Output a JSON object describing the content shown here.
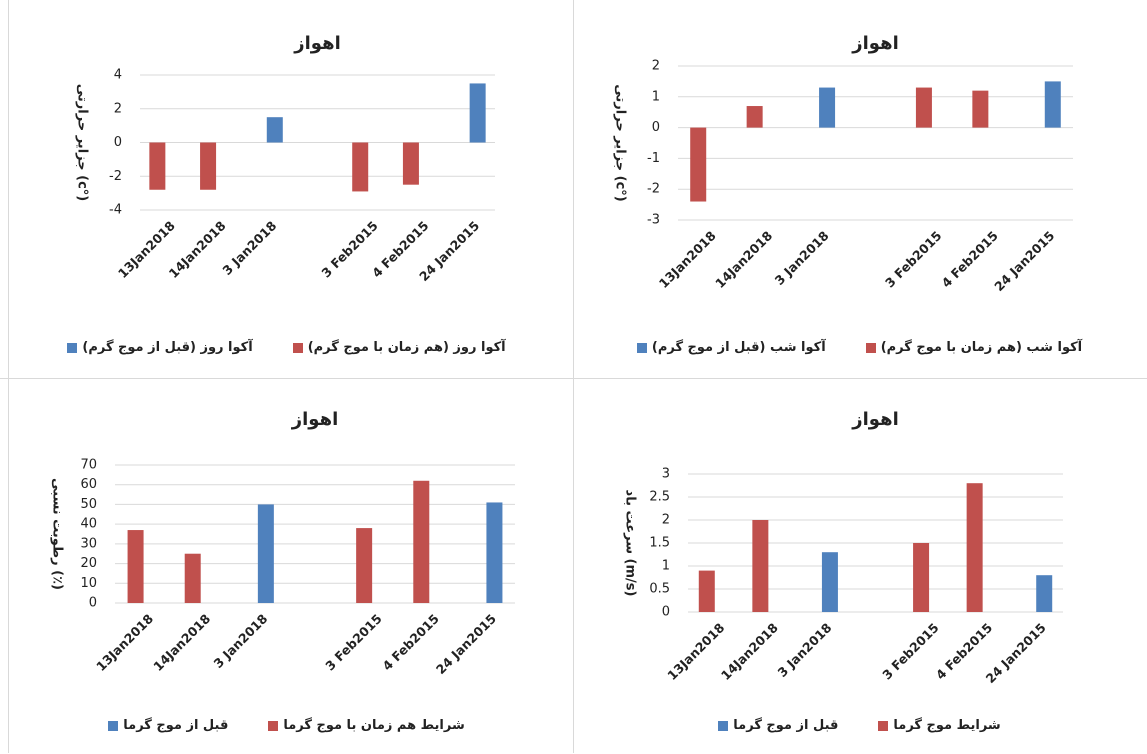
{
  "chart_data": [
    {
      "type": "bar",
      "title": "اهواز",
      "y_label": "جزایر حرارتی (c°)",
      "categories": [
        "13Jan2018",
        "14Jan2018",
        "3 Jan2018",
        null,
        "3 Feb2015",
        "4 Feb2015",
        "24 Jan2015"
      ],
      "series": [
        {
          "name": "آکوا روز (هم زمان با موج گرم)",
          "color": "#c0504d",
          "values": [
            -2.8,
            -2.8,
            null,
            null,
            -2.9,
            -2.5,
            null
          ]
        },
        {
          "name": "آکوا روز (قبل از موج گرم)",
          "color": "#4f81bd",
          "values": [
            null,
            null,
            1.5,
            null,
            null,
            null,
            3.5
          ]
        }
      ],
      "ylim": [
        -4,
        4
      ],
      "yticks": [
        -4,
        -2,
        0,
        2,
        4
      ],
      "grid": true
    },
    {
      "type": "bar",
      "title": "اهواز",
      "y_label": "جزایر حرارتی (c°)",
      "categories": [
        "13Jan2018",
        "14Jan2018",
        "3 Jan2018",
        null,
        "3 Feb2015",
        "4 Feb2015",
        "24 Jan2015"
      ],
      "series": [
        {
          "name": "آکوا شب (هم زمان با موج گرم)",
          "color": "#c0504d",
          "values": [
            -2.4,
            0.7,
            null,
            null,
            1.3,
            1.2,
            null
          ]
        },
        {
          "name": "آکوا شب (قبل از موج گرم)",
          "color": "#4f81bd",
          "values": [
            null,
            null,
            1.3,
            null,
            null,
            null,
            1.5
          ]
        }
      ],
      "ylim": [
        -3,
        2
      ],
      "yticks": [
        -3,
        -2,
        -1,
        0,
        1,
        2
      ],
      "grid": true
    },
    {
      "type": "bar",
      "title": "اهواز",
      "y_label": "رطوبت نسبی (٪)",
      "categories": [
        "13Jan2018",
        "14Jan2018",
        "3 Jan2018",
        null,
        "3 Feb2015",
        "4 Feb2015",
        "24 Jan2015"
      ],
      "series": [
        {
          "name": "شرایط هم زمان با موج گرما",
          "color": "#c0504d",
          "values": [
            37,
            25,
            null,
            null,
            38,
            62,
            null
          ]
        },
        {
          "name": "قبل از موج گرما",
          "color": "#4f81bd",
          "values": [
            null,
            null,
            50,
            null,
            null,
            null,
            51
          ]
        }
      ],
      "ylim": [
        0,
        70
      ],
      "yticks": [
        0,
        10,
        20,
        30,
        40,
        50,
        60,
        70
      ],
      "grid": true
    },
    {
      "type": "bar",
      "title": "اهواز",
      "y_label": "سرعت باد (m/s)",
      "categories": [
        "13Jan2018",
        "14Jan2018",
        "3 Jan2018",
        null,
        "3 Feb2015",
        "4 Feb2015",
        "24 Jan2015"
      ],
      "series": [
        {
          "name": "شرایط موج گرما",
          "color": "#c0504d",
          "values": [
            0.9,
            2,
            null,
            null,
            1.5,
            2.8,
            null
          ]
        },
        {
          "name": "قبل از موج گرما",
          "color": "#4f81bd",
          "values": [
            null,
            null,
            1.3,
            null,
            null,
            null,
            0.8
          ]
        }
      ],
      "ylim": [
        0,
        3
      ],
      "yticks": [
        0,
        0.5,
        1,
        1.5,
        2,
        2.5,
        3
      ],
      "grid": true
    }
  ]
}
